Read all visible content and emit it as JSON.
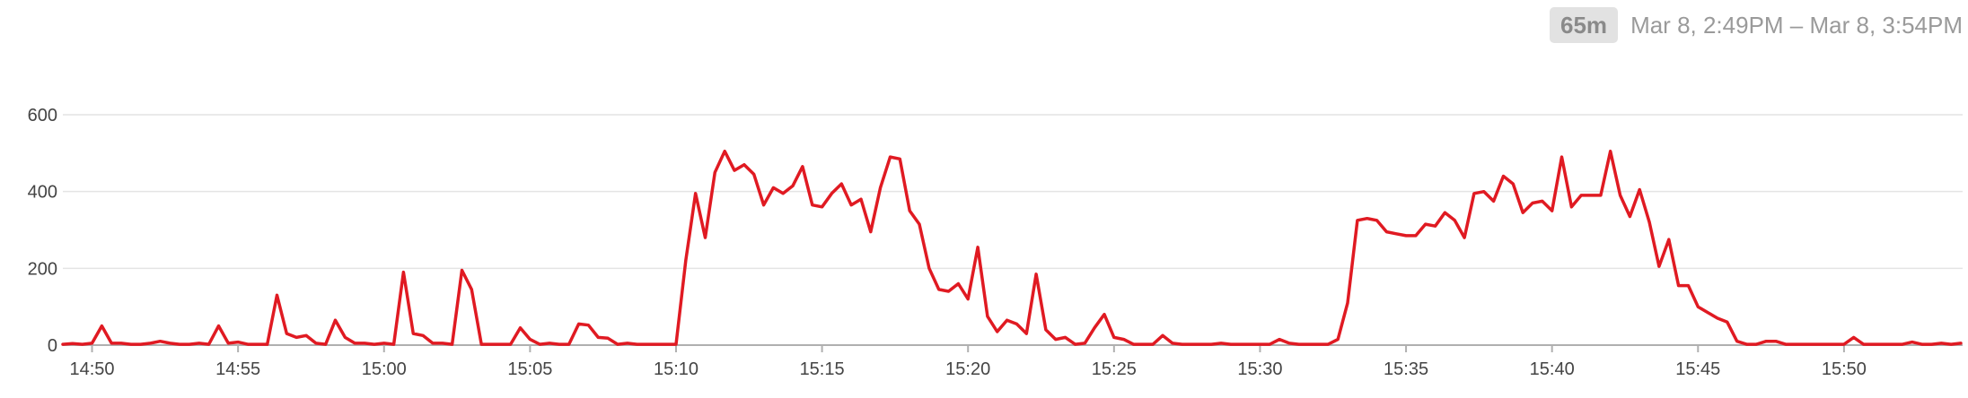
{
  "header": {
    "duration_badge": "65m",
    "time_range": "Mar 8, 2:49PM – Mar 8, 3:54PM"
  },
  "colors": {
    "series": "#e01a22",
    "grid": "#e4e4e4",
    "axis": "#b0b0b0",
    "badge_bg": "#e2e2e2"
  },
  "chart_data": {
    "type": "line",
    "title": "",
    "xlabel": "",
    "ylabel": "",
    "ylim": [
      0,
      650
    ],
    "y_ticks": [
      0,
      200,
      400,
      600
    ],
    "x_ticks": [
      "14:50",
      "14:55",
      "15:00",
      "15:05",
      "15:10",
      "15:15",
      "15:20",
      "15:25",
      "15:30",
      "15:35",
      "15:40",
      "15:45",
      "15:50"
    ],
    "grid": true,
    "series": [
      {
        "points": [
          [
            "14:49",
            2
          ],
          [
            "14:49:20",
            4
          ],
          [
            "14:49:40",
            2
          ],
          [
            "14:50",
            5
          ],
          [
            "14:50:20",
            50
          ],
          [
            "14:50:40",
            5
          ],
          [
            "14:51",
            5
          ],
          [
            "14:51:20",
            2
          ],
          [
            "14:51:40",
            2
          ],
          [
            "14:52",
            5
          ],
          [
            "14:52:20",
            10
          ],
          [
            "14:52:40",
            5
          ],
          [
            "14:53",
            2
          ],
          [
            "14:53:20",
            2
          ],
          [
            "14:53:40",
            5
          ],
          [
            "14:54",
            2
          ],
          [
            "14:54:20",
            50
          ],
          [
            "14:54:40",
            5
          ],
          [
            "14:55",
            8
          ],
          [
            "14:55:20",
            2
          ],
          [
            "14:55:40",
            2
          ],
          [
            "14:56",
            2
          ],
          [
            "14:56:20",
            130
          ],
          [
            "14:56:40",
            30
          ],
          [
            "14:57",
            20
          ],
          [
            "14:57:20",
            25
          ],
          [
            "14:57:40",
            5
          ],
          [
            "14:58",
            2
          ],
          [
            "14:58:20",
            65
          ],
          [
            "14:58:40",
            20
          ],
          [
            "14:59",
            5
          ],
          [
            "14:59:20",
            5
          ],
          [
            "14:59:40",
            2
          ],
          [
            "15:00",
            5
          ],
          [
            "15:00:20",
            2
          ],
          [
            "15:00:40",
            190
          ],
          [
            "15:01",
            30
          ],
          [
            "15:01:20",
            25
          ],
          [
            "15:01:40",
            5
          ],
          [
            "15:02",
            5
          ],
          [
            "15:02:20",
            2
          ],
          [
            "15:02:40",
            195
          ],
          [
            "15:03",
            145
          ],
          [
            "15:03:20",
            2
          ],
          [
            "15:03:40",
            2
          ],
          [
            "15:04",
            2
          ],
          [
            "15:04:20",
            2
          ],
          [
            "15:04:40",
            45
          ],
          [
            "15:05",
            15
          ],
          [
            "15:05:20",
            2
          ],
          [
            "15:05:40",
            5
          ],
          [
            "15:06",
            2
          ],
          [
            "15:06:20",
            2
          ],
          [
            "15:06:40",
            55
          ],
          [
            "15:07",
            52
          ],
          [
            "15:07:20",
            20
          ],
          [
            "15:07:40",
            18
          ],
          [
            "15:08",
            2
          ],
          [
            "15:08:20",
            5
          ],
          [
            "15:08:40",
            2
          ],
          [
            "15:09",
            2
          ],
          [
            "15:09:20",
            2
          ],
          [
            "15:09:40",
            2
          ],
          [
            "15:10",
            2
          ],
          [
            "15:10:20",
            220
          ],
          [
            "15:10:40",
            395
          ],
          [
            "15:11",
            280
          ],
          [
            "15:11:20",
            450
          ],
          [
            "15:11:40",
            505
          ],
          [
            "15:12",
            455
          ],
          [
            "15:12:20",
            470
          ],
          [
            "15:12:40",
            445
          ],
          [
            "15:13",
            365
          ],
          [
            "15:13:20",
            410
          ],
          [
            "15:13:40",
            395
          ],
          [
            "15:14",
            415
          ],
          [
            "15:14:20",
            465
          ],
          [
            "15:14:40",
            365
          ],
          [
            "15:15",
            360
          ],
          [
            "15:15:20",
            395
          ],
          [
            "15:15:40",
            420
          ],
          [
            "15:16",
            365
          ],
          [
            "15:16:20",
            380
          ],
          [
            "15:16:40",
            295
          ],
          [
            "15:17",
            410
          ],
          [
            "15:17:20",
            490
          ],
          [
            "15:17:40",
            485
          ],
          [
            "15:18",
            350
          ],
          [
            "15:18:20",
            315
          ],
          [
            "15:18:40",
            200
          ],
          [
            "15:19",
            145
          ],
          [
            "15:19:20",
            140
          ],
          [
            "15:19:40",
            160
          ],
          [
            "15:20",
            120
          ],
          [
            "15:20:20",
            255
          ],
          [
            "15:20:40",
            75
          ],
          [
            "15:21",
            35
          ],
          [
            "15:21:20",
            65
          ],
          [
            "15:21:40",
            55
          ],
          [
            "15:22",
            30
          ],
          [
            "15:22:20",
            185
          ],
          [
            "15:22:40",
            40
          ],
          [
            "15:23",
            15
          ],
          [
            "15:23:20",
            20
          ],
          [
            "15:23:40",
            2
          ],
          [
            "15:24",
            5
          ],
          [
            "15:24:20",
            45
          ],
          [
            "15:24:40",
            80
          ],
          [
            "15:25",
            20
          ],
          [
            "15:25:20",
            15
          ],
          [
            "15:25:40",
            2
          ],
          [
            "15:26",
            2
          ],
          [
            "15:26:20",
            2
          ],
          [
            "15:26:40",
            25
          ],
          [
            "15:27",
            5
          ],
          [
            "15:27:20",
            2
          ],
          [
            "15:27:40",
            2
          ],
          [
            "15:28",
            2
          ],
          [
            "15:28:20",
            2
          ],
          [
            "15:28:40",
            5
          ],
          [
            "15:29",
            2
          ],
          [
            "15:29:20",
            2
          ],
          [
            "15:29:40",
            2
          ],
          [
            "15:30",
            2
          ],
          [
            "15:30:20",
            2
          ],
          [
            "15:30:40",
            15
          ],
          [
            "15:31",
            5
          ],
          [
            "15:31:20",
            2
          ],
          [
            "15:31:40",
            2
          ],
          [
            "15:32",
            2
          ],
          [
            "15:32:20",
            2
          ],
          [
            "15:32:40",
            15
          ],
          [
            "15:33",
            110
          ],
          [
            "15:33:20",
            325
          ],
          [
            "15:33:40",
            330
          ],
          [
            "15:34",
            325
          ],
          [
            "15:34:20",
            295
          ],
          [
            "15:34:40",
            290
          ],
          [
            "15:35",
            285
          ],
          [
            "15:35:20",
            285
          ],
          [
            "15:35:40",
            315
          ],
          [
            "15:36",
            310
          ],
          [
            "15:36:20",
            345
          ],
          [
            "15:36:40",
            325
          ],
          [
            "15:37",
            280
          ],
          [
            "15:37:20",
            395
          ],
          [
            "15:37:40",
            400
          ],
          [
            "15:38",
            375
          ],
          [
            "15:38:20",
            440
          ],
          [
            "15:38:40",
            420
          ],
          [
            "15:39",
            345
          ],
          [
            "15:39:20",
            370
          ],
          [
            "15:39:40",
            375
          ],
          [
            "15:40",
            350
          ],
          [
            "15:40:20",
            490
          ],
          [
            "15:40:40",
            360
          ],
          [
            "15:41",
            390
          ],
          [
            "15:41:20",
            390
          ],
          [
            "15:41:40",
            390
          ],
          [
            "15:42",
            505
          ],
          [
            "15:42:20",
            390
          ],
          [
            "15:42:40",
            335
          ],
          [
            "15:43",
            405
          ],
          [
            "15:43:20",
            320
          ],
          [
            "15:43:40",
            205
          ],
          [
            "15:44",
            275
          ],
          [
            "15:44:20",
            155
          ],
          [
            "15:44:40",
            155
          ],
          [
            "15:45",
            100
          ],
          [
            "15:45:20",
            85
          ],
          [
            "15:45:40",
            70
          ],
          [
            "15:46",
            60
          ],
          [
            "15:46:20",
            10
          ],
          [
            "15:46:40",
            2
          ],
          [
            "15:47",
            2
          ],
          [
            "15:47:20",
            10
          ],
          [
            "15:47:40",
            10
          ],
          [
            "15:48",
            2
          ],
          [
            "15:48:20",
            2
          ],
          [
            "15:48:40",
            2
          ],
          [
            "15:49",
            2
          ],
          [
            "15:49:20",
            2
          ],
          [
            "15:49:40",
            2
          ],
          [
            "15:50",
            2
          ],
          [
            "15:50:20",
            20
          ],
          [
            "15:50:40",
            2
          ],
          [
            "15:51",
            2
          ],
          [
            "15:51:20",
            2
          ],
          [
            "15:51:40",
            2
          ],
          [
            "15:52",
            2
          ],
          [
            "15:52:20",
            8
          ],
          [
            "15:52:40",
            2
          ],
          [
            "15:53",
            2
          ],
          [
            "15:53:20",
            5
          ],
          [
            "15:53:40",
            2
          ],
          [
            "15:54",
            5
          ]
        ]
      }
    ]
  }
}
